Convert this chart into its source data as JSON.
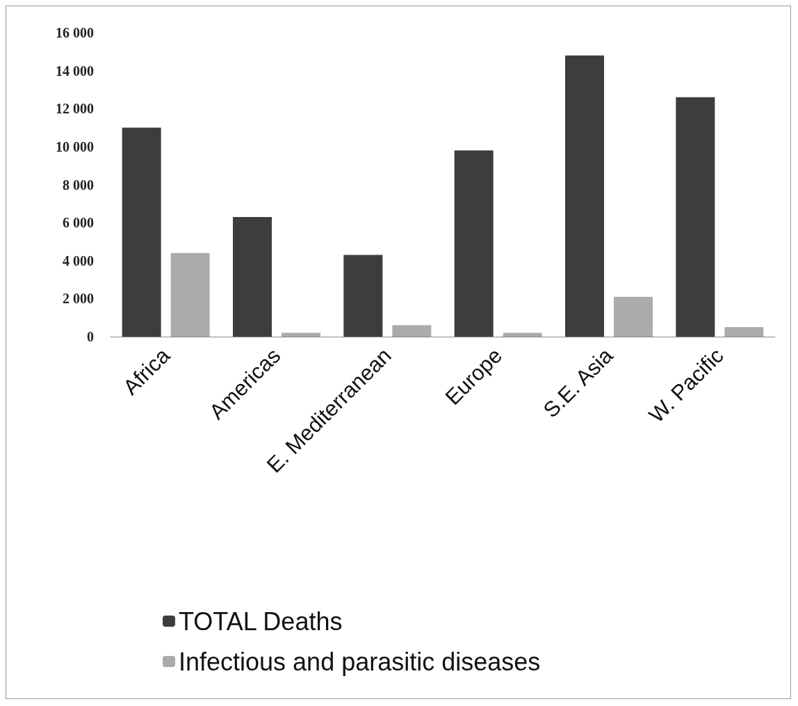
{
  "chart_data": {
    "type": "bar",
    "categories": [
      "Africa",
      "Americas",
      "E. Mediterranean",
      "Europe",
      "S.E. Asia",
      "W. Pacific"
    ],
    "series": [
      {
        "name": "TOTAL Deaths",
        "color": "#3d3d3d",
        "values": [
          11000,
          6300,
          4300,
          9800,
          14800,
          12600
        ]
      },
      {
        "name": "Infectious and parasitic diseases",
        "color": "#ababab",
        "values": [
          4400,
          200,
          600,
          200,
          2100,
          500
        ]
      }
    ],
    "ylim": [
      0,
      16000
    ],
    "yticks": [
      {
        "value": 0,
        "label": "0"
      },
      {
        "value": 2000,
        "label": "2 000"
      },
      {
        "value": 4000,
        "label": "4 000"
      },
      {
        "value": 6000,
        "label": "6 000"
      },
      {
        "value": 8000,
        "label": "8 000"
      },
      {
        "value": 10000,
        "label": "10 000"
      },
      {
        "value": 12000,
        "label": "12 000"
      },
      {
        "value": 14000,
        "label": "14 000"
      },
      {
        "value": 16000,
        "label": "16 000"
      }
    ],
    "grid": false,
    "legend": "bottom"
  }
}
